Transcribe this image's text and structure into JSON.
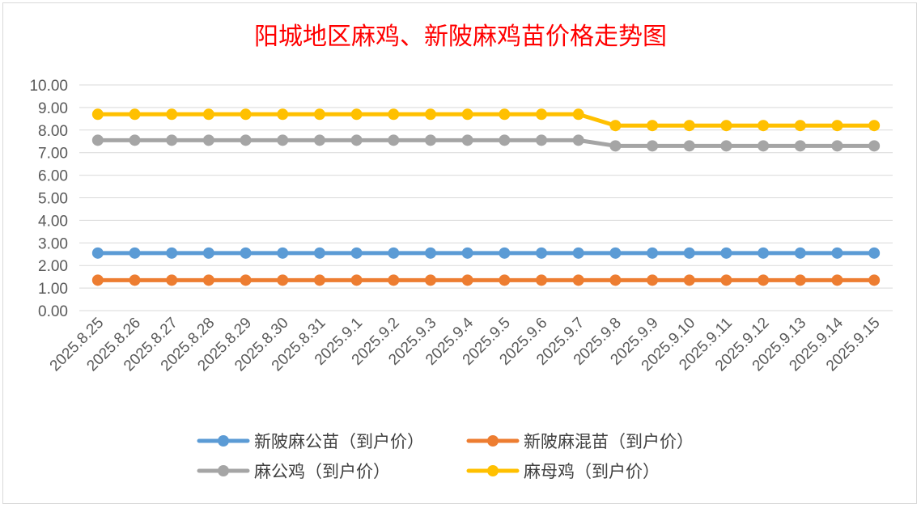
{
  "chart_data": {
    "type": "line",
    "title": "阳城地区麻鸡、新陂麻鸡苗价格走势图",
    "xlabel": "",
    "ylabel": "",
    "ylim": [
      0,
      10
    ],
    "yticks": [
      "0.00",
      "1.00",
      "2.00",
      "3.00",
      "4.00",
      "5.00",
      "6.00",
      "7.00",
      "8.00",
      "9.00",
      "10.00"
    ],
    "grid": true,
    "legend_position": "bottom",
    "categories": [
      "2025.8.25",
      "2025.8.26",
      "2025.8.27",
      "2025.8.28",
      "2025.8.29",
      "2025.8.30",
      "2025.8.31",
      "2025.9.1",
      "2025.9.2",
      "2025.9.3",
      "2025.9.4",
      "2025.9.5",
      "2025.9.6",
      "2025.9.7",
      "2025.9.8",
      "2025.9.9",
      "2025.9.10",
      "2025.9.11",
      "2025.9.12",
      "2025.9.13",
      "2025.9.14",
      "2025.9.15"
    ],
    "series": [
      {
        "name": "新陂麻公苗（到户价）",
        "color": "#5b9bd5",
        "values": [
          2.55,
          2.55,
          2.55,
          2.55,
          2.55,
          2.55,
          2.55,
          2.55,
          2.55,
          2.55,
          2.55,
          2.55,
          2.55,
          2.55,
          2.55,
          2.55,
          2.55,
          2.55,
          2.55,
          2.55,
          2.55,
          2.55
        ]
      },
      {
        "name": "新陂麻混苗（到户价）",
        "color": "#ed7d31",
        "values": [
          1.35,
          1.35,
          1.35,
          1.35,
          1.35,
          1.35,
          1.35,
          1.35,
          1.35,
          1.35,
          1.35,
          1.35,
          1.35,
          1.35,
          1.35,
          1.35,
          1.35,
          1.35,
          1.35,
          1.35,
          1.35,
          1.35
        ]
      },
      {
        "name": "麻公鸡（到户价）",
        "color": "#a5a5a5",
        "values": [
          7.55,
          7.55,
          7.55,
          7.55,
          7.55,
          7.55,
          7.55,
          7.55,
          7.55,
          7.55,
          7.55,
          7.55,
          7.55,
          7.55,
          7.3,
          7.3,
          7.3,
          7.3,
          7.3,
          7.3,
          7.3,
          7.3
        ]
      },
      {
        "name": "麻母鸡（到户价）",
        "color": "#ffc000",
        "values": [
          8.7,
          8.7,
          8.7,
          8.7,
          8.7,
          8.7,
          8.7,
          8.7,
          8.7,
          8.7,
          8.7,
          8.7,
          8.7,
          8.7,
          8.2,
          8.2,
          8.2,
          8.2,
          8.2,
          8.2,
          8.2,
          8.2
        ]
      }
    ],
    "title_color": "#ff0000"
  }
}
